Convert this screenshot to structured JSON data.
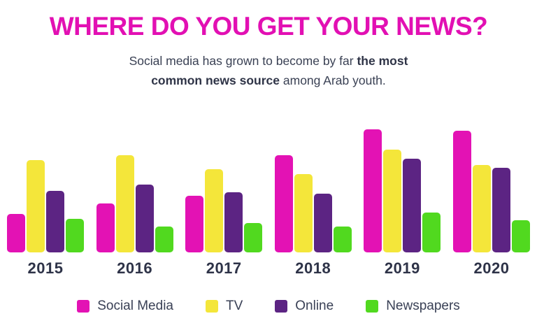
{
  "header": {
    "title": "WHERE DO YOU GET YOUR NEWS?",
    "subtitle_lines": [
      [
        {
          "t": "Social media has grown to become by far ",
          "b": false
        },
        {
          "t": "the most",
          "b": true
        }
      ],
      [
        {
          "t": "common news source",
          "b": true
        },
        {
          "t": " among Arab youth.",
          "b": false
        }
      ]
    ]
  },
  "chart_data": {
    "type": "bar",
    "categories": [
      "2015",
      "2016",
      "2017",
      "2018",
      "2019",
      "2020"
    ],
    "series": [
      {
        "name": "Social Media",
        "color": "#e312b4",
        "values": [
          25,
          32,
          37,
          63,
          80,
          79
        ]
      },
      {
        "name": "TV",
        "color": "#f4e63a",
        "values": [
          60,
          63,
          54,
          51,
          67,
          57
        ]
      },
      {
        "name": "Online",
        "color": "#5c2483",
        "values": [
          40,
          44,
          39,
          38,
          61,
          55
        ]
      },
      {
        "name": "Newspapers",
        "color": "#51d91f",
        "values": [
          22,
          17,
          19,
          17,
          26,
          21
        ]
      }
    ],
    "title": "WHERE DO YOU GET YOUR NEWS?",
    "xlabel": "",
    "ylabel": "",
    "ylim": [
      0,
      100
    ],
    "grid": false,
    "legend_position": "bottom"
  },
  "legend": {
    "items": [
      {
        "label": "Social Media",
        "color": "#e312b4"
      },
      {
        "label": "TV",
        "color": "#f4e63a"
      },
      {
        "label": "Online",
        "color": "#5c2483"
      },
      {
        "label": "Newspapers",
        "color": "#51d91f"
      }
    ]
  },
  "colors": {
    "title": "#e210b3",
    "body_text": "#3a4154",
    "axis_label": "#2e3348",
    "background": "#ffffff"
  }
}
